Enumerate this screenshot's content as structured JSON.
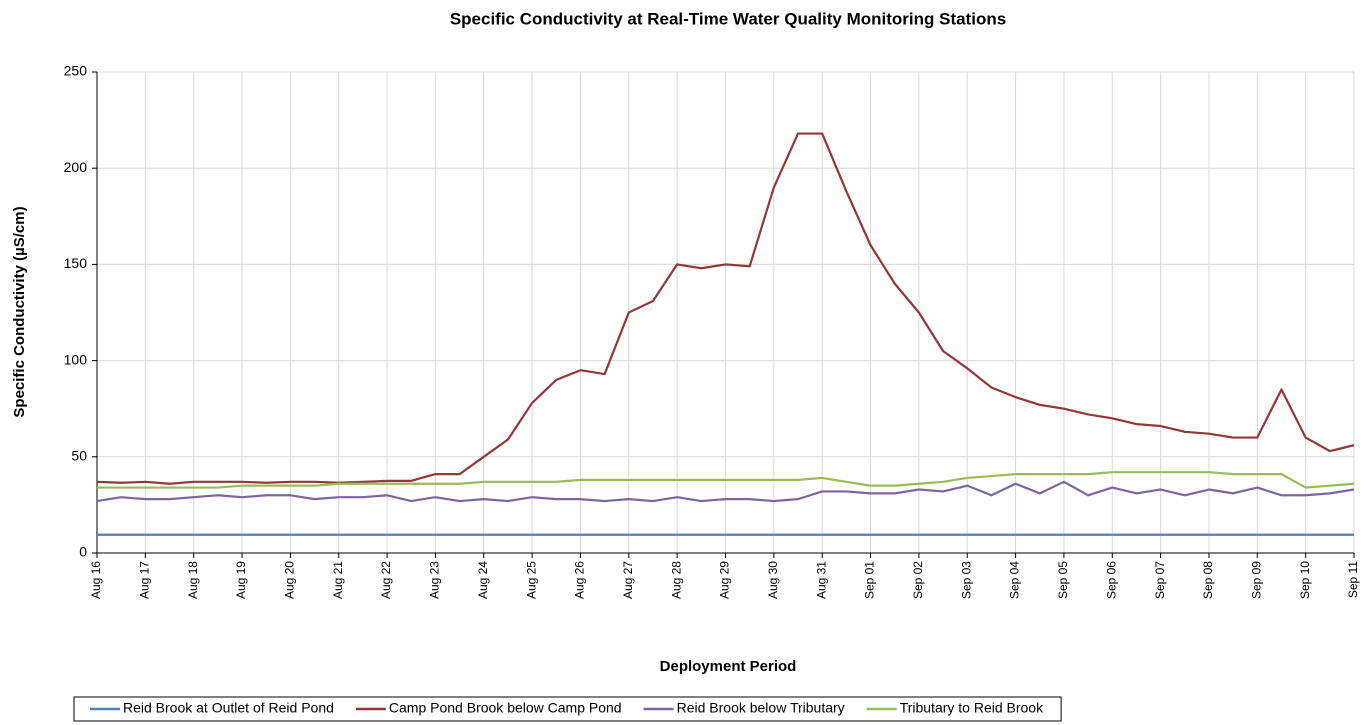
{
  "chart_data": {
    "type": "line",
    "title": "Specific Conductivity at Real-Time Water Quality Monitoring Stations",
    "x_label": "Deployment Period",
    "y_label": "Specific Conductivity (µS/cm)",
    "categories": [
      "Aug 16",
      null,
      "Aug 17",
      null,
      "Aug 18",
      null,
      "Aug 19",
      null,
      "Aug 20",
      null,
      "Aug 21",
      null,
      "Aug 22",
      null,
      "Aug 23",
      null,
      "Aug 24",
      null,
      "Aug 25",
      null,
      "Aug 26",
      null,
      "Aug 27",
      null,
      "Aug 28",
      null,
      "Aug 29",
      null,
      "Aug 30",
      null,
      "Aug 31",
      null,
      "Sep 01",
      null,
      "Sep 02",
      null,
      "Sep 03",
      null,
      "Sep 04",
      null,
      "Sep 05",
      null,
      "Sep 06",
      null,
      "Sep 07",
      null,
      "Sep 08",
      null,
      "Sep 09",
      null,
      "Sep 10",
      null,
      "Sep 11"
    ],
    "series": [
      {
        "name": "Reid Brook at Outlet of Reid Pond",
        "color": "#4f81bd",
        "values": [
          9.5,
          9.5,
          9.5,
          9.5,
          9.5,
          9.5,
          9.5,
          9.5,
          9.5,
          9.5,
          9.5,
          9.5,
          9.5,
          9.5,
          9.5,
          9.5,
          9.5,
          9.5,
          9.5,
          9.5,
          9.5,
          9.5,
          9.5,
          9.5,
          9.5,
          9.5,
          9.5,
          9.5,
          9.5,
          9.5,
          9.5,
          9.5,
          9.5,
          9.5,
          9.5,
          9.5,
          9.5,
          9.5,
          9.5,
          9.5,
          9.5,
          9.5,
          9.5,
          9.5,
          9.5,
          9.5,
          9.5,
          9.5,
          9.5,
          9.5,
          9.5,
          9.5,
          9.5
        ]
      },
      {
        "name": "Camp Pond Brook below Camp Pond",
        "color": "#953735",
        "values": [
          37,
          36.5,
          37,
          36,
          37,
          37,
          37,
          36.5,
          37,
          37,
          36.5,
          37,
          37.5,
          37.5,
          41,
          41,
          50,
          59,
          78,
          90,
          95,
          93,
          125,
          131,
          150,
          148,
          150,
          149,
          190,
          218,
          218,
          188,
          160,
          140,
          125,
          105,
          96,
          86,
          81,
          77,
          75,
          72,
          70,
          67,
          66,
          63,
          62,
          60,
          60,
          85,
          60,
          53,
          56
        ]
      },
      {
        "name": "Reid Brook below Tributary",
        "color": "#8064a2",
        "values": [
          27,
          29,
          28,
          28,
          29,
          30,
          29,
          30,
          30,
          28,
          29,
          29,
          30,
          27,
          29,
          27,
          28,
          27,
          29,
          28,
          28,
          27,
          28,
          27,
          29,
          27,
          28,
          28,
          27,
          28,
          32,
          32,
          31,
          31,
          33,
          32,
          35,
          30,
          36,
          31,
          37,
          30,
          34,
          31,
          33,
          30,
          33,
          31,
          34,
          30,
          30,
          31,
          33
        ]
      },
      {
        "name": "Tributary to Reid Brook",
        "color": "#9bbb59",
        "values": [
          34,
          34,
          34,
          34,
          34,
          34,
          35,
          35,
          35,
          35,
          36,
          36,
          36,
          36,
          36,
          36,
          37,
          37,
          37,
          37,
          38,
          38,
          38,
          38,
          38,
          38,
          38,
          38,
          38,
          38,
          39,
          37,
          35,
          35,
          36,
          37,
          39,
          40,
          41,
          41,
          41,
          41,
          42,
          42,
          42,
          42,
          42,
          41,
          41,
          41,
          34,
          35,
          36
        ]
      }
    ],
    "ylim": [
      0,
      250
    ],
    "yticks": [
      0,
      50,
      100,
      150,
      200,
      250
    ],
    "grid": true,
    "legend": "bottom"
  }
}
